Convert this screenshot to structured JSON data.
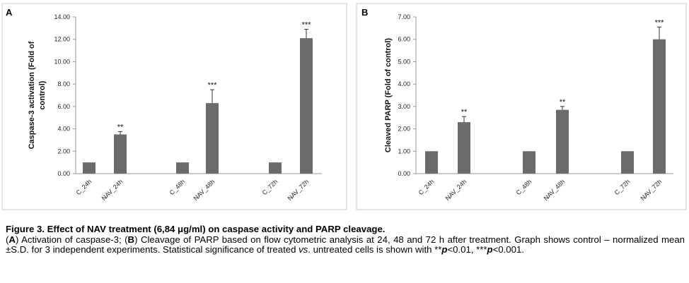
{
  "chart_data": [
    {
      "type": "bar",
      "panel": "A",
      "ylabel": "Caspase-3 activation (Fold of control)",
      "ylabel_lines": [
        "Caspase-3 activation (Fold of",
        "control)"
      ],
      "ylim": [
        0,
        14
      ],
      "yticks": [
        "0.00",
        "2.00",
        "4.00",
        "6.00",
        "8.00",
        "10.00",
        "12.00",
        "14.00"
      ],
      "categories": [
        "C_24h",
        "NAV_24h",
        "C_48h",
        "NAV_48h",
        "C_72h",
        "NAV_72h"
      ],
      "values": [
        1.0,
        3.5,
        1.0,
        6.3,
        1.0,
        12.1
      ],
      "errors": [
        0,
        0.25,
        0,
        1.2,
        0,
        0.8
      ],
      "significance": [
        "",
        "**",
        "",
        "***",
        "",
        "***"
      ],
      "bar_color": "#6b6b6b",
      "grid": false
    },
    {
      "type": "bar",
      "panel": "B",
      "ylabel": "Cleaved PARP (Fold of control)",
      "ylabel_lines": [
        "Cleaved PARP (Fold of control)"
      ],
      "ylim": [
        0,
        7
      ],
      "yticks": [
        "0.00",
        "1.00",
        "2.00",
        "3.00",
        "4.00",
        "5.00",
        "6.00",
        "7.00"
      ],
      "categories": [
        "C_24h",
        "NAV_24h",
        "C_48h",
        "NAV_48h",
        "C_72h",
        "NAV_72h"
      ],
      "values": [
        1.0,
        2.3,
        1.0,
        2.85,
        1.0,
        6.0
      ],
      "errors": [
        0,
        0.25,
        0,
        0.15,
        0,
        0.55
      ],
      "significance": [
        "",
        "**",
        "",
        "**",
        "",
        "***"
      ],
      "bar_color": "#6b6b6b",
      "grid": false
    }
  ],
  "caption": {
    "title": "Figure 3. Effect of NAV treatment (6,84 μg/ml) on caspase activity and PARP cleavage.",
    "pA_open": "(",
    "pA_letter": "A",
    "pA_close": ")",
    "partA": " Activation of caspase-3; ",
    "pB_open": "(",
    "pB_letter": "B",
    "pB_close": ")",
    "partB": " Cleavage of PARP based on flow cytometric analysis at 24, 48 and 72 h after treatment. Graph shows control – normalized mean ±S.D. for 3 independent experiments. Statistical significance of treated ",
    "vs": "vs",
    "partC": ". untreated cells is shown with **",
    "p1": "p",
    "partD": "<0.01, ***",
    "p2": "p",
    "partE": "<0.001."
  }
}
